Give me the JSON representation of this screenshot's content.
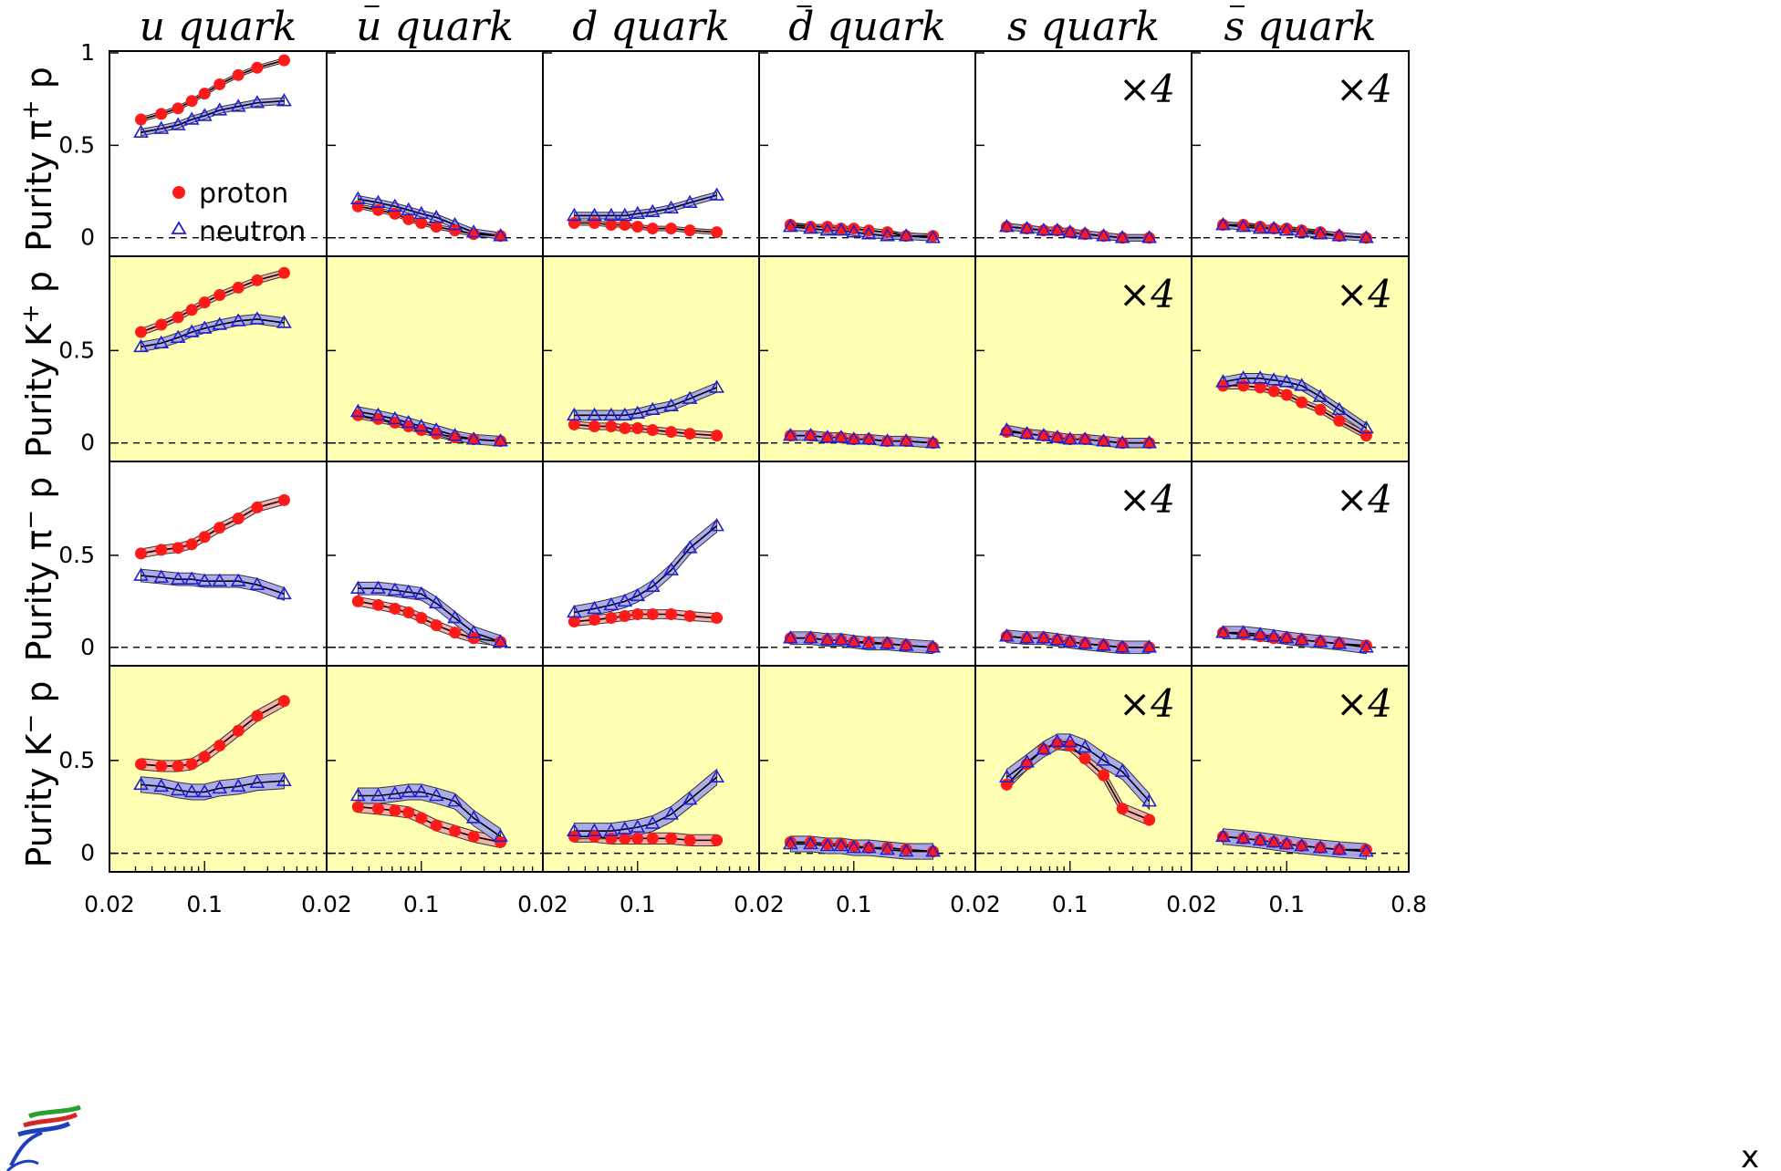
{
  "colors": {
    "proton": "#ff1a1a",
    "proton_band": "#f4a7a7",
    "neutron": "#2020d0",
    "neutron_band": "#a3a3ec",
    "kaon_panel_bg": "#ffffb4"
  },
  "legend": {
    "proton": "proton",
    "neutron": "neutron"
  },
  "scale_label": "×4",
  "x_axis_label": "x",
  "chart_data": {
    "type": "scatter",
    "x_scale": "log",
    "xlim": [
      0.02,
      0.8
    ],
    "ylim": [
      -0.1,
      1.0
    ],
    "x_ticks": [
      "0.02",
      "0.1",
      "0.8"
    ],
    "y_ticks": [
      "0",
      "0.5",
      "1"
    ],
    "x": [
      0.033,
      0.047,
      0.063,
      0.08,
      0.1,
      0.13,
      0.18,
      0.25,
      0.4
    ],
    "columns": [
      "u",
      "ū",
      "d",
      "d̄",
      "s",
      "s̄"
    ],
    "column_titles": [
      {
        "base": "u",
        "bar": false,
        "rest": "quark"
      },
      {
        "base": "u",
        "bar": true,
        "rest": "quark"
      },
      {
        "base": "d",
        "bar": false,
        "rest": "quark"
      },
      {
        "base": "d",
        "bar": true,
        "rest": "quark"
      },
      {
        "base": "s",
        "bar": false,
        "rest": "quark"
      },
      {
        "base": "s",
        "bar": true,
        "rest": "quark"
      }
    ],
    "scaled_columns": [
      4,
      5
    ],
    "rows": [
      {
        "label": "π⁺",
        "ylabel_prefix": "Purity ",
        "ylabel_sym": "π",
        "ylabel_sup": "+",
        "ylabel_suffix": " p",
        "highlight": false,
        "series": [
          {
            "name": "proton",
            "cols": [
              [
                0.64,
                0.67,
                0.7,
                0.74,
                0.78,
                0.83,
                0.88,
                0.92,
                0.96
              ],
              [
                0.17,
                0.15,
                0.13,
                0.1,
                0.08,
                0.06,
                0.04,
                0.02,
                0.01
              ],
              [
                0.08,
                0.08,
                0.07,
                0.07,
                0.06,
                0.05,
                0.05,
                0.04,
                0.03
              ],
              [
                0.07,
                0.06,
                0.06,
                0.05,
                0.05,
                0.04,
                0.03,
                0.01,
                0.01
              ],
              [
                0.06,
                0.05,
                0.04,
                0.04,
                0.03,
                0.02,
                0.01,
                0.0,
                0.0
              ],
              [
                0.07,
                0.07,
                0.06,
                0.05,
                0.05,
                0.04,
                0.03,
                0.01,
                0.0
              ]
            ]
          },
          {
            "name": "neutron",
            "cols": [
              [
                0.57,
                0.59,
                0.61,
                0.64,
                0.66,
                0.69,
                0.71,
                0.73,
                0.74
              ],
              [
                0.21,
                0.19,
                0.17,
                0.15,
                0.13,
                0.11,
                0.07,
                0.03,
                0.01
              ],
              [
                0.12,
                0.12,
                0.12,
                0.12,
                0.13,
                0.14,
                0.16,
                0.19,
                0.23
              ],
              [
                0.06,
                0.05,
                0.04,
                0.04,
                0.03,
                0.02,
                0.01,
                0.01,
                0.0
              ],
              [
                0.06,
                0.05,
                0.04,
                0.04,
                0.03,
                0.02,
                0.01,
                0.0,
                0.0
              ],
              [
                0.07,
                0.06,
                0.05,
                0.05,
                0.04,
                0.03,
                0.02,
                0.01,
                0.0
              ]
            ]
          }
        ]
      },
      {
        "label": "K⁺",
        "ylabel_prefix": "Purity ",
        "ylabel_sym": "K",
        "ylabel_sup": "+",
        "ylabel_suffix": " p",
        "highlight": true,
        "series": [
          {
            "name": "proton",
            "cols": [
              [
                0.6,
                0.64,
                0.68,
                0.72,
                0.76,
                0.8,
                0.84,
                0.88,
                0.92
              ],
              [
                0.15,
                0.13,
                0.11,
                0.09,
                0.07,
                0.05,
                0.03,
                0.02,
                0.01
              ],
              [
                0.1,
                0.09,
                0.09,
                0.08,
                0.08,
                0.07,
                0.06,
                0.05,
                0.04
              ],
              [
                0.04,
                0.04,
                0.03,
                0.03,
                0.02,
                0.02,
                0.01,
                0.01,
                0.0
              ],
              [
                0.06,
                0.05,
                0.04,
                0.03,
                0.02,
                0.02,
                0.01,
                0.0,
                0.0
              ],
              [
                0.31,
                0.31,
                0.3,
                0.28,
                0.26,
                0.22,
                0.18,
                0.12,
                0.04
              ]
            ]
          },
          {
            "name": "neutron",
            "cols": [
              [
                0.52,
                0.54,
                0.57,
                0.6,
                0.62,
                0.64,
                0.66,
                0.67,
                0.65
              ],
              [
                0.17,
                0.15,
                0.13,
                0.11,
                0.09,
                0.07,
                0.04,
                0.02,
                0.01
              ],
              [
                0.15,
                0.15,
                0.15,
                0.15,
                0.16,
                0.18,
                0.2,
                0.24,
                0.3
              ],
              [
                0.04,
                0.04,
                0.03,
                0.03,
                0.02,
                0.02,
                0.01,
                0.01,
                0.0
              ],
              [
                0.07,
                0.05,
                0.04,
                0.03,
                0.02,
                0.02,
                0.01,
                0.0,
                0.0
              ],
              [
                0.33,
                0.35,
                0.35,
                0.34,
                0.33,
                0.31,
                0.25,
                0.18,
                0.08
              ]
            ]
          }
        ]
      },
      {
        "label": "π⁻",
        "ylabel_prefix": "Purity ",
        "ylabel_sym": "π",
        "ylabel_sup": "−",
        "ylabel_suffix": " p",
        "highlight": false,
        "series": [
          {
            "name": "proton",
            "cols": [
              [
                0.51,
                0.53,
                0.54,
                0.56,
                0.6,
                0.65,
                0.7,
                0.76,
                0.8
              ],
              [
                0.25,
                0.23,
                0.21,
                0.19,
                0.16,
                0.12,
                0.08,
                0.05,
                0.03
              ],
              [
                0.14,
                0.15,
                0.16,
                0.17,
                0.18,
                0.18,
                0.18,
                0.17,
                0.16
              ],
              [
                0.05,
                0.05,
                0.04,
                0.04,
                0.03,
                0.03,
                0.02,
                0.01,
                0.0
              ],
              [
                0.06,
                0.05,
                0.05,
                0.04,
                0.03,
                0.02,
                0.01,
                0.0,
                0.0
              ],
              [
                0.08,
                0.07,
                0.06,
                0.05,
                0.05,
                0.04,
                0.03,
                0.02,
                0.01
              ]
            ]
          },
          {
            "name": "neutron",
            "cols": [
              [
                0.39,
                0.38,
                0.37,
                0.37,
                0.36,
                0.36,
                0.36,
                0.34,
                0.29
              ],
              [
                0.32,
                0.32,
                0.31,
                0.3,
                0.29,
                0.24,
                0.16,
                0.08,
                0.03
              ],
              [
                0.19,
                0.21,
                0.23,
                0.25,
                0.28,
                0.33,
                0.42,
                0.54,
                0.66
              ],
              [
                0.05,
                0.05,
                0.04,
                0.04,
                0.03,
                0.02,
                0.02,
                0.01,
                0.0
              ],
              [
                0.06,
                0.05,
                0.05,
                0.04,
                0.03,
                0.02,
                0.01,
                0.0,
                0.0
              ],
              [
                0.08,
                0.08,
                0.07,
                0.06,
                0.05,
                0.04,
                0.03,
                0.02,
                0.0
              ]
            ]
          }
        ]
      },
      {
        "label": "K⁻",
        "ylabel_prefix": "Purity ",
        "ylabel_sym": "K",
        "ylabel_sup": "−",
        "ylabel_suffix": " p",
        "highlight": true,
        "series": [
          {
            "name": "proton",
            "cols": [
              [
                0.48,
                0.47,
                0.47,
                0.48,
                0.52,
                0.58,
                0.66,
                0.74,
                0.82
              ],
              [
                0.25,
                0.24,
                0.23,
                0.22,
                0.19,
                0.15,
                0.12,
                0.09,
                0.06
              ],
              [
                0.09,
                0.09,
                0.08,
                0.08,
                0.08,
                0.08,
                0.08,
                0.07,
                0.07
              ],
              [
                0.06,
                0.06,
                0.05,
                0.05,
                0.04,
                0.03,
                0.03,
                0.02,
                0.01
              ],
              [
                0.37,
                0.48,
                0.56,
                0.59,
                0.58,
                0.51,
                0.42,
                0.24,
                0.18
              ],
              [
                0.09,
                0.08,
                0.07,
                0.06,
                0.05,
                0.04,
                0.03,
                0.02,
                0.02
              ]
            ]
          },
          {
            "name": "neutron",
            "cols": [
              [
                0.37,
                0.36,
                0.34,
                0.33,
                0.33,
                0.35,
                0.36,
                0.38,
                0.39
              ],
              [
                0.31,
                0.31,
                0.32,
                0.33,
                0.33,
                0.31,
                0.28,
                0.19,
                0.09
              ],
              [
                0.12,
                0.12,
                0.12,
                0.13,
                0.14,
                0.16,
                0.21,
                0.29,
                0.41
              ],
              [
                0.05,
                0.05,
                0.04,
                0.04,
                0.03,
                0.03,
                0.02,
                0.01,
                0.01
              ],
              [
                0.41,
                0.49,
                0.56,
                0.6,
                0.6,
                0.57,
                0.5,
                0.44,
                0.28
              ],
              [
                0.09,
                0.08,
                0.07,
                0.06,
                0.05,
                0.04,
                0.03,
                0.02,
                0.01
              ]
            ]
          }
        ]
      }
    ]
  }
}
